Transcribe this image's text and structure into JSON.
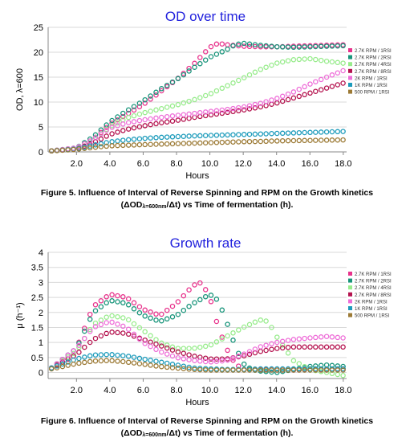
{
  "chart_data": [
    {
      "type": "scatter",
      "title": "OD over time",
      "xlabel": "Hours",
      "ylabel": "OD, λ=600",
      "xlim": [
        0.3,
        18.2
      ],
      "ylim": [
        0,
        25
      ],
      "xticks": [
        "2.0",
        "4.0",
        "6.0",
        "8.0",
        "10.0",
        "12.0",
        "14.0",
        "16.0",
        "18.0"
      ],
      "xtick_values": [
        2,
        4,
        6,
        8,
        10,
        12,
        14,
        16,
        18
      ],
      "yticks": [
        "0",
        "5",
        "10",
        "15",
        "20",
        "25"
      ],
      "ytick_values": [
        0,
        5,
        10,
        15,
        20,
        25
      ],
      "grid": "horizontal",
      "legend_position": "right",
      "x_step": 0.33,
      "series": [
        {
          "name": "2.7K RPM / 1RSI",
          "color": "#e8338c",
          "kx": [
            0.5,
            2,
            3,
            4,
            5,
            6,
            7,
            8,
            9,
            10,
            10.5,
            11,
            12,
            13,
            14,
            15,
            16,
            17,
            18
          ],
          "ky": [
            0.2,
            0.8,
            2.5,
            5.5,
            7.5,
            9.5,
            12,
            14.5,
            17.5,
            21,
            21.8,
            21.5,
            21.2,
            21.1,
            21.1,
            21.2,
            21.3,
            21.4,
            21.5
          ]
        },
        {
          "name": "2.7K RPM / 2RSI",
          "color": "#17947a",
          "kx": [
            0.5,
            2,
            3,
            4,
            5,
            6,
            7,
            8,
            9,
            10,
            11,
            11.5,
            12,
            13,
            14,
            15,
            16,
            17,
            18
          ],
          "ky": [
            0.2,
            0.8,
            3,
            6,
            8.2,
            10.2,
            12.5,
            14.5,
            16.8,
            19,
            20.5,
            21.5,
            21.8,
            21.4,
            21.1,
            21,
            21.1,
            21.2,
            21.3
          ]
        },
        {
          "name": "2.7K RPM / 4RSI",
          "color": "#98ec8c",
          "kx": [
            0.5,
            2,
            3,
            4,
            5,
            6,
            7,
            8,
            9,
            10,
            11,
            12,
            13,
            14,
            15,
            16,
            17,
            18
          ],
          "ky": [
            0.2,
            0.8,
            2.5,
            5,
            6.8,
            7.8,
            8.6,
            9.4,
            10.4,
            11.6,
            13.2,
            14.8,
            16.5,
            17.8,
            18.5,
            18.7,
            18.2,
            17.8
          ]
        },
        {
          "name": "2.7K RPM / 8RSI",
          "color": "#b4124e",
          "kx": [
            0.5,
            2,
            3,
            4,
            5,
            6,
            7,
            8,
            9,
            10,
            11,
            12,
            13,
            14,
            15,
            16,
            17,
            18
          ],
          "ky": [
            0.2,
            0.6,
            1.8,
            3.5,
            4.5,
            5.2,
            5.8,
            6.3,
            6.9,
            7.4,
            7.9,
            8.4,
            9,
            9.8,
            10.8,
            11.8,
            12.8,
            13.8
          ]
        },
        {
          "name": "2K RPM / 1RSI",
          "color": "#ee6ed8",
          "kx": [
            0.5,
            2,
            3,
            4,
            5,
            6,
            7,
            8,
            9,
            10,
            11,
            12,
            13,
            14,
            15,
            16,
            17,
            18
          ],
          "ky": [
            0.2,
            0.8,
            2.5,
            4.8,
            5.8,
            6.4,
            6.9,
            7.3,
            7.7,
            8.1,
            8.5,
            9,
            9.7,
            10.7,
            12,
            13.6,
            15,
            16.3
          ]
        },
        {
          "name": "1K RPM / 1RSI",
          "color": "#1c9bbb",
          "kx": [
            0.5,
            2,
            3,
            4,
            5,
            6,
            7,
            8,
            9,
            10,
            11,
            12,
            13,
            14,
            15,
            16,
            17,
            18
          ],
          "ky": [
            0.2,
            0.6,
            1.3,
            2,
            2.4,
            2.7,
            2.9,
            3.05,
            3.2,
            3.3,
            3.4,
            3.5,
            3.6,
            3.7,
            3.8,
            3.9,
            4,
            4.1
          ]
        },
        {
          "name": "500 RPM / 1RSI",
          "color": "#9c7a35",
          "kx": [
            0.5,
            2,
            3,
            4,
            5,
            6,
            7,
            8,
            9,
            10,
            11,
            12,
            13,
            14,
            15,
            16,
            17,
            18
          ],
          "ky": [
            0.2,
            0.5,
            0.9,
            1.2,
            1.35,
            1.45,
            1.55,
            1.65,
            1.75,
            1.85,
            1.95,
            2.05,
            2.1,
            2.2,
            2.25,
            2.3,
            2.35,
            2.4
          ]
        }
      ]
    },
    {
      "type": "scatter",
      "title": "Growth rate",
      "xlabel": "Hours",
      "ylabel": "μ (h⁻¹)",
      "xlim": [
        0.3,
        18.2
      ],
      "ylim": [
        -0.2,
        4
      ],
      "xticks": [
        "2.0",
        "4.0",
        "6.0",
        "8.0",
        "10.0",
        "12.0",
        "14.0",
        "16.0",
        "18.0"
      ],
      "xtick_values": [
        2,
        4,
        6,
        8,
        10,
        12,
        14,
        16,
        18
      ],
      "yticks": [
        "0",
        "0.5",
        "1",
        "1.5",
        "2",
        "2.5",
        "3",
        "3.5",
        "4"
      ],
      "ytick_values": [
        0,
        0.5,
        1,
        1.5,
        2,
        2.5,
        3,
        3.5,
        4
      ],
      "grid": "horizontal",
      "legend_position": "right",
      "x_step": 0.33,
      "series": [
        {
          "name": "2.7K RPM / 1RSI",
          "color": "#e8338c",
          "kx": [
            0.5,
            2,
            3,
            4,
            5,
            6,
            7,
            8,
            9,
            9.5,
            10,
            10.5,
            11,
            11.5,
            12,
            13,
            14,
            15,
            16,
            17,
            18
          ],
          "ky": [
            0.15,
            0.8,
            2.2,
            2.6,
            2.5,
            2.1,
            1.9,
            2.3,
            2.9,
            3.0,
            2.5,
            1.5,
            0.8,
            0.3,
            0.1,
            0.1,
            0.08,
            0.08,
            0.1,
            0.1,
            0.12
          ]
        },
        {
          "name": "2.7K RPM / 2RSI",
          "color": "#17947a",
          "kx": [
            0.5,
            2,
            3,
            4,
            5,
            6,
            7,
            8,
            9,
            10,
            10.5,
            11,
            11.5,
            12,
            12.5,
            13,
            14,
            15,
            16,
            17,
            18
          ],
          "ky": [
            0.15,
            0.8,
            2.0,
            2.4,
            2.3,
            1.9,
            1.7,
            1.9,
            2.3,
            2.6,
            2.4,
            1.7,
            0.9,
            0.3,
            0.1,
            0.05,
            0.0,
            0.1,
            0.2,
            0.25,
            0.2
          ]
        },
        {
          "name": "2.7K RPM / 4RSI",
          "color": "#98ec8c",
          "kx": [
            0.5,
            2,
            3,
            4,
            5,
            6,
            7,
            8,
            9,
            10,
            11,
            12,
            13,
            13.5,
            14,
            15,
            16,
            17,
            18
          ],
          "ky": [
            0.15,
            0.7,
            1.6,
            1.9,
            1.8,
            1.4,
            1.0,
            0.8,
            0.8,
            0.9,
            1.2,
            1.5,
            1.75,
            1.7,
            1.2,
            0.4,
            0.1,
            0.0,
            -0.1
          ]
        },
        {
          "name": "2.7K RPM / 8RSI",
          "color": "#b4124e",
          "kx": [
            0.5,
            2,
            3,
            4,
            5,
            6,
            7,
            8,
            9,
            10,
            11,
            12,
            13,
            14,
            15,
            16,
            17,
            18
          ],
          "ky": [
            0.15,
            0.6,
            1.1,
            1.35,
            1.3,
            1.1,
            0.9,
            0.7,
            0.55,
            0.45,
            0.45,
            0.55,
            0.7,
            0.8,
            0.85,
            0.85,
            0.85,
            0.85
          ]
        },
        {
          "name": "2K RPM / 1RSI",
          "color": "#ee6ed8",
          "kx": [
            0.5,
            2,
            3,
            4,
            5,
            6,
            7,
            8,
            9,
            10,
            11,
            12,
            13,
            14,
            15,
            16,
            17,
            18
          ],
          "ky": [
            0.15,
            0.8,
            1.5,
            1.7,
            1.5,
            1.0,
            0.7,
            0.5,
            0.4,
            0.35,
            0.4,
            0.6,
            0.85,
            1.0,
            1.1,
            1.15,
            1.2,
            1.15
          ]
        },
        {
          "name": "1K RPM / 1RSI",
          "color": "#1c9bbb",
          "kx": [
            0.5,
            2,
            3,
            4,
            5,
            6,
            7,
            8,
            9,
            10,
            11,
            12,
            13,
            14,
            15,
            16,
            17,
            18
          ],
          "ky": [
            0.15,
            0.45,
            0.58,
            0.6,
            0.55,
            0.45,
            0.35,
            0.25,
            0.15,
            0.12,
            0.1,
            0.1,
            0.12,
            0.12,
            0.12,
            0.12,
            0.12,
            0.12
          ]
        },
        {
          "name": "500 RPM / 1RSI",
          "color": "#9c7a35",
          "kx": [
            0.5,
            2,
            3,
            4,
            5,
            6,
            7,
            8,
            9,
            10,
            11,
            12,
            13,
            14,
            15,
            16,
            17,
            18
          ],
          "ky": [
            0.12,
            0.3,
            0.38,
            0.4,
            0.35,
            0.28,
            0.2,
            0.15,
            0.1,
            0.08,
            0.08,
            0.08,
            0.08,
            0.08,
            0.08,
            0.08,
            0.08,
            0.08
          ]
        }
      ]
    }
  ],
  "captions": [
    {
      "main": "Figure 5. Influence of Interval of Reverse Spinning and RPM on the Growth kinetics",
      "l2a": "(ΔOD",
      "l2sub": "λ=600nm",
      "l2b": "/Δt) vs Time of fermentation (h)."
    },
    {
      "main": "Figure 6. Influence of Interval of Reverse Spinning and RPM on the Growth kinetics",
      "l2a": "(ΔOD",
      "l2sub": "λ=600nm",
      "l2b": "/Δt) vs Time of fermentation (h)."
    }
  ],
  "colors": {
    "title": "#2222dd",
    "grid": "#d9d9d9",
    "axis": "#888888"
  }
}
